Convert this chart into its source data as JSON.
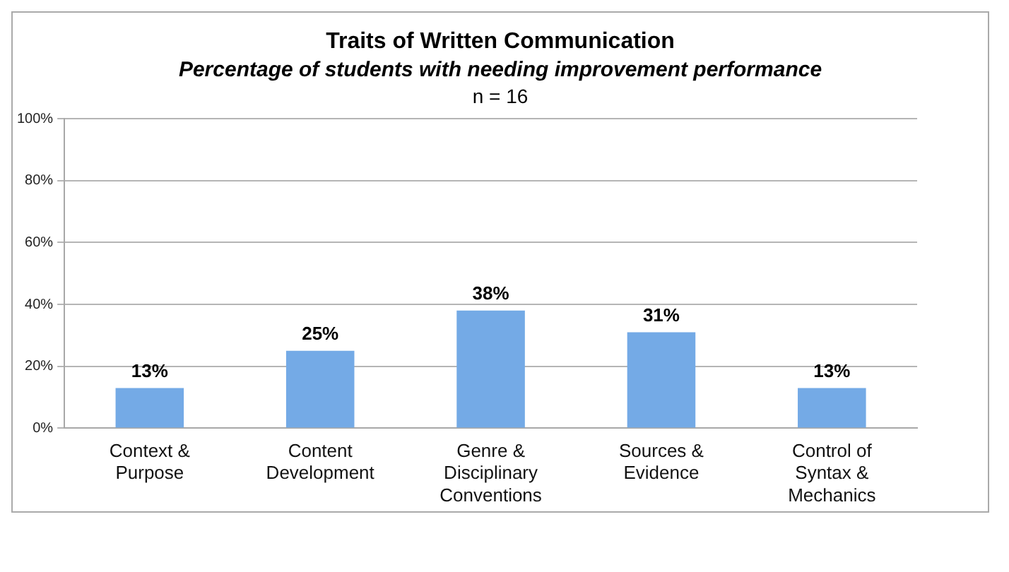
{
  "chart_data": {
    "type": "bar",
    "title": "Traits of Written Communication",
    "subtitle": "Percentage of students with needing improvement performance",
    "annotations": [
      "n = 16"
    ],
    "categories": [
      "Context & Purpose",
      "Content Development",
      "Genre & Disciplinary Conventions",
      "Sources & Evidence",
      "Control of Syntax & Mechanics"
    ],
    "values": [
      13,
      25,
      38,
      31,
      13
    ],
    "color": "#74aae6",
    "value_labels": [
      "13%",
      "25%",
      "38%",
      "31%",
      "13%"
    ],
    "ylim": [
      0,
      100
    ],
    "yticks": [
      {
        "value": 0,
        "label": "0%"
      },
      {
        "value": 20,
        "label": "20%"
      },
      {
        "value": 40,
        "label": "40%"
      },
      {
        "value": 60,
        "label": "60%"
      },
      {
        "value": 80,
        "label": "80%"
      },
      {
        "value": 100,
        "label": "100%"
      }
    ],
    "grid": "y",
    "legend": false
  }
}
